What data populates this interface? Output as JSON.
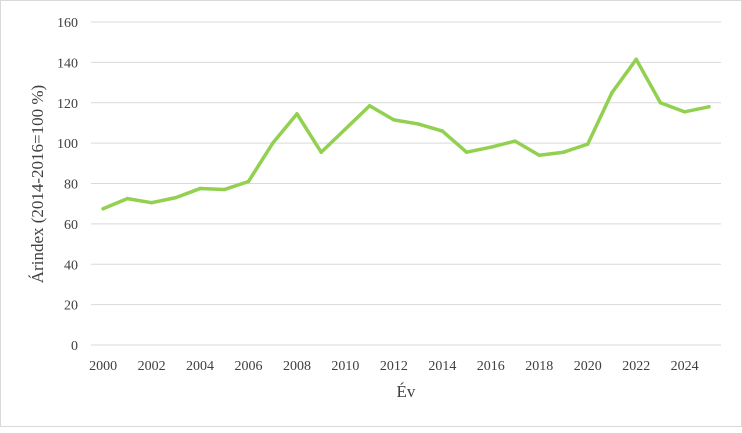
{
  "chart_data": {
    "type": "line",
    "title": "",
    "xlabel": "Év",
    "ylabel": "Árindex (2014-2016=100 %)",
    "ylim": [
      0,
      160
    ],
    "xlim": [
      2000,
      2025
    ],
    "y_ticks": [
      "0",
      "20",
      "40",
      "60",
      "80",
      "100",
      "120",
      "140",
      "160"
    ],
    "x_ticks": [
      "2000",
      "2002",
      "2004",
      "2006",
      "2008",
      "2010",
      "2012",
      "2014",
      "2016",
      "2018",
      "2020",
      "2022",
      "2024"
    ],
    "grid": "horizontal",
    "legend": "none",
    "series": [
      {
        "color": "#92d050",
        "x": [
          2000,
          2001,
          2002,
          2003,
          2004,
          2005,
          2006,
          2007,
          2008,
          2009,
          2010,
          2011,
          2012,
          2013,
          2014,
          2015,
          2016,
          2017,
          2018,
          2019,
          2020,
          2021,
          2022,
          2023,
          2024,
          2025
        ],
        "values": [
          67.5,
          72.5,
          70.5,
          73,
          77.5,
          77,
          81,
          100,
          114.5,
          95.5,
          107,
          118.5,
          111.5,
          109.5,
          106,
          95.5,
          98,
          101,
          94,
          95.5,
          99.5,
          125,
          141.5,
          120,
          115.5,
          118
        ]
      }
    ],
    "colors": {
      "line": "#92d050",
      "grid": "#d9d9d9",
      "text": "#404040",
      "border": "#d9d9d9"
    }
  }
}
